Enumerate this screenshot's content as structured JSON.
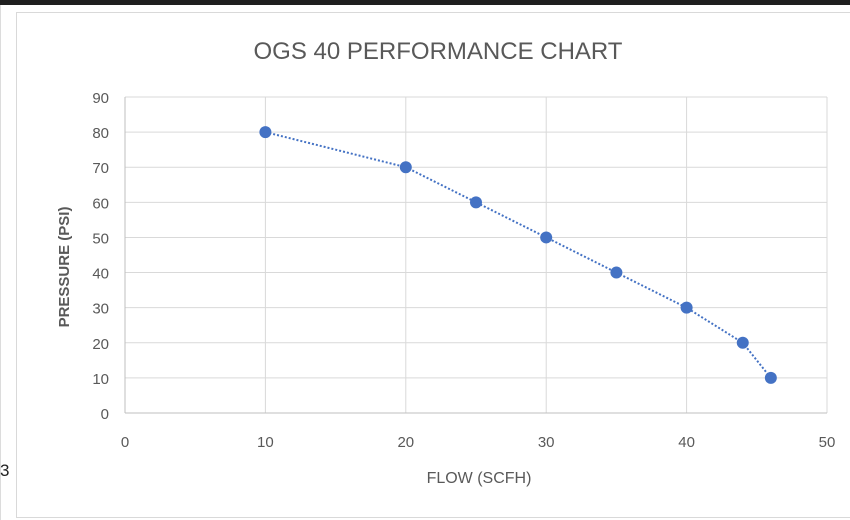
{
  "page": {
    "margin_text": "3"
  },
  "chart_data": {
    "type": "scatter",
    "title": "OGS 40 PERFORMANCE CHART",
    "xlabel": "FLOW (SCFH)",
    "ylabel": "PRESSURE (PSI)",
    "xlim": [
      0,
      50
    ],
    "ylim": [
      0,
      90
    ],
    "xticks": [
      0,
      10,
      20,
      30,
      40,
      50
    ],
    "yticks": [
      0,
      10,
      20,
      30,
      40,
      50,
      60,
      70,
      80,
      90
    ],
    "grid": "vertical and horizontal",
    "legend": "none",
    "trendline": "dotted",
    "colors": {
      "series": "#4472C4",
      "grid": "#d9d9d9",
      "text": "#595959"
    },
    "series": [
      {
        "x": [
          10,
          20,
          25,
          30,
          35,
          40,
          44,
          46
        ],
        "y": [
          80,
          70,
          60,
          50,
          40,
          30,
          20,
          10
        ]
      }
    ]
  }
}
